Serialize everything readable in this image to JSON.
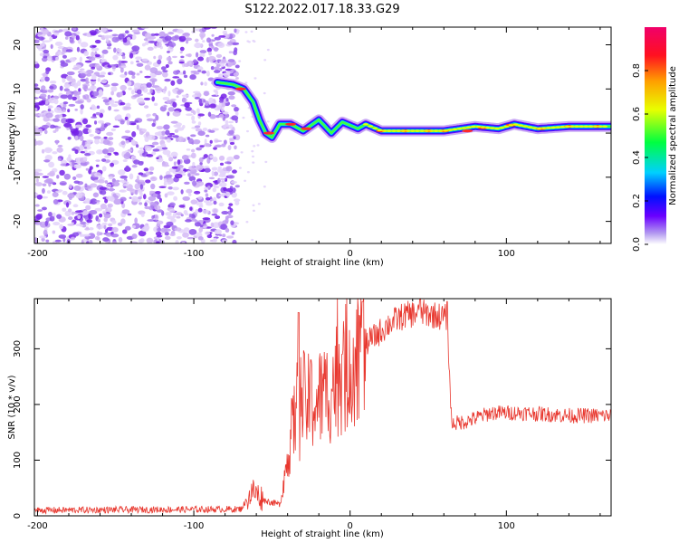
{
  "title": "S122.2022.017.18.33.G29",
  "chart_data": [
    {
      "type": "heatmap",
      "xlabel": "Height of straight line (km)",
      "ylabel": "Frequency (Hz)",
      "xlim": [
        -202,
        167
      ],
      "ylim": [
        -25,
        24
      ],
      "xticks": [
        -200,
        -100,
        0,
        100
      ],
      "yticks": [
        -20,
        -10,
        0,
        10,
        20
      ],
      "colorbar": {
        "label": "Normalized spectral amplitude",
        "range": [
          0,
          1
        ],
        "ticks": [
          "0.0",
          "0.2",
          "0.4",
          "0.6",
          "0.8"
        ]
      },
      "ridge_frequency_track": [
        {
          "x": -85,
          "y": 11.5
        },
        {
          "x": -75,
          "y": 11
        },
        {
          "x": -68,
          "y": 10
        },
        {
          "x": -62,
          "y": 7
        },
        {
          "x": -58,
          "y": 3
        },
        {
          "x": -54,
          "y": 0
        },
        {
          "x": -50,
          "y": -1
        },
        {
          "x": -45,
          "y": 2
        },
        {
          "x": -38,
          "y": 2
        },
        {
          "x": -30,
          "y": 0.5
        },
        {
          "x": -20,
          "y": 3
        },
        {
          "x": -12,
          "y": 0
        },
        {
          "x": -5,
          "y": 2.5
        },
        {
          "x": 5,
          "y": 1
        },
        {
          "x": 10,
          "y": 2
        },
        {
          "x": 20,
          "y": 0.5
        },
        {
          "x": 60,
          "y": 0.5
        },
        {
          "x": 80,
          "y": 1.5
        },
        {
          "x": 95,
          "y": 1
        },
        {
          "x": 105,
          "y": 2
        },
        {
          "x": 120,
          "y": 1
        },
        {
          "x": 140,
          "y": 1.5
        },
        {
          "x": 167,
          "y": 1.5
        }
      ]
    },
    {
      "type": "line",
      "xlabel": "Height of straight line (km)",
      "ylabel": "SNR (10 * v/v)",
      "xlim": [
        -202,
        167
      ],
      "ylim": [
        0,
        390
      ],
      "xticks": [
        -200,
        -100,
        0,
        100
      ],
      "yticks": [
        0,
        100,
        200,
        300
      ],
      "series": [
        {
          "color": "#e8382f",
          "envelope": [
            {
              "x": -202,
              "y": 10
            },
            {
              "x": -70,
              "y": 12
            },
            {
              "x": -62,
              "y": 45
            },
            {
              "x": -55,
              "y": 28
            },
            {
              "x": -45,
              "y": 20
            },
            {
              "x": -38,
              "y": 140
            },
            {
              "x": -33,
              "y": 210
            },
            {
              "x": -25,
              "y": 200
            },
            {
              "x": -15,
              "y": 220
            },
            {
              "x": -8,
              "y": 250
            },
            {
              "x": -2,
              "y": 270
            },
            {
              "x": 5,
              "y": 300
            },
            {
              "x": 15,
              "y": 320
            },
            {
              "x": 25,
              "y": 345
            },
            {
              "x": 35,
              "y": 360
            },
            {
              "x": 45,
              "y": 365
            },
            {
              "x": 55,
              "y": 360
            },
            {
              "x": 62,
              "y": 355
            },
            {
              "x": 65,
              "y": 165
            },
            {
              "x": 75,
              "y": 170
            },
            {
              "x": 90,
              "y": 185
            },
            {
              "x": 110,
              "y": 185
            },
            {
              "x": 140,
              "y": 180
            },
            {
              "x": 167,
              "y": 180
            }
          ],
          "spikes": [
            {
              "x": -33,
              "y": 365
            },
            {
              "x": -25,
              "y": 280
            },
            {
              "x": -5,
              "y": 290
            },
            {
              "x": 8,
              "y": 385
            },
            {
              "x": 45,
              "y": 390
            },
            {
              "x": 62,
              "y": 385
            }
          ]
        }
      ]
    }
  ]
}
